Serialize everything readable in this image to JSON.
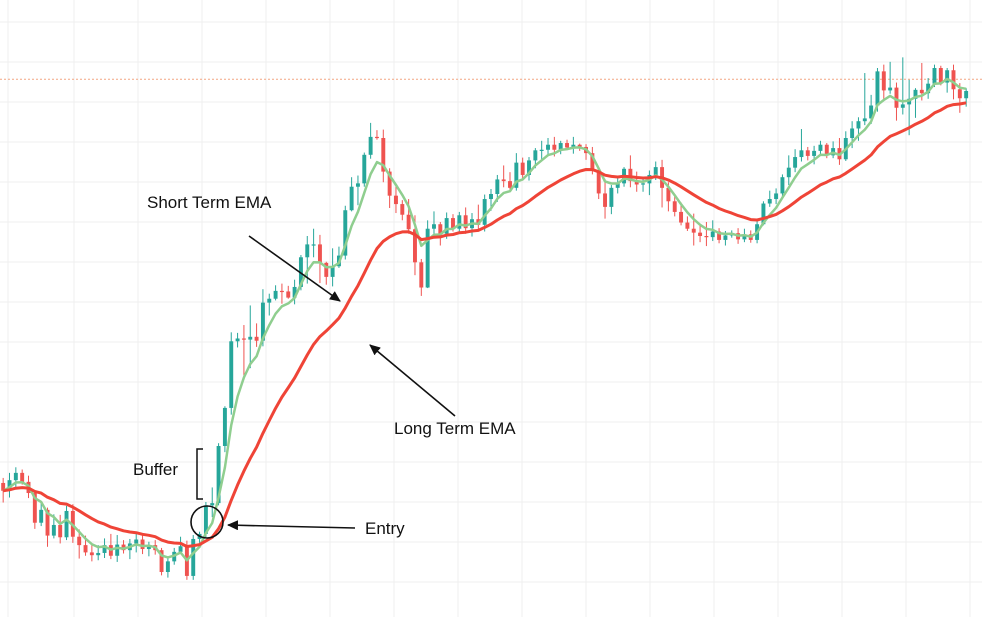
{
  "chart_data": {
    "type": "candlestick",
    "x_range": [
      0,
      155
    ],
    "y_range": [
      0,
      100
    ],
    "grid": true,
    "colors": {
      "background": "#ffffff",
      "grid": "#efefef",
      "reference_line": "#f4a582",
      "bullish": "#26a69a",
      "bearish": "#ef5350",
      "short_ema": "#8fce8f",
      "long_ema": "#ef4437",
      "annotation": "#111111"
    },
    "reference_level": 93,
    "candles": [
      {
        "o": 20.9,
        "h": 21.8,
        "l": 17.4,
        "c": 19.5
      },
      {
        "o": 19.5,
        "h": 22.7,
        "l": 18.3,
        "c": 21.4
      },
      {
        "o": 21.4,
        "h": 23.7,
        "l": 19.9,
        "c": 22.7
      },
      {
        "o": 22.7,
        "h": 23.3,
        "l": 20.6,
        "c": 21.1
      },
      {
        "o": 21.1,
        "h": 22.2,
        "l": 18.2,
        "c": 19.1
      },
      {
        "o": 19.1,
        "h": 19.6,
        "l": 12.7,
        "c": 13.8
      },
      {
        "o": 13.8,
        "h": 17.5,
        "l": 13.2,
        "c": 16.1
      },
      {
        "o": 16.1,
        "h": 16.5,
        "l": 9.5,
        "c": 11.5
      },
      {
        "o": 11.5,
        "h": 15.3,
        "l": 11.0,
        "c": 13.4
      },
      {
        "o": 13.4,
        "h": 15.2,
        "l": 10.1,
        "c": 11.2
      },
      {
        "o": 11.2,
        "h": 16.8,
        "l": 10.7,
        "c": 15.9
      },
      {
        "o": 15.9,
        "h": 17.1,
        "l": 10.2,
        "c": 11.3
      },
      {
        "o": 11.3,
        "h": 12.6,
        "l": 7.4,
        "c": 9.8
      },
      {
        "o": 9.8,
        "h": 11.5,
        "l": 7.9,
        "c": 8.5
      },
      {
        "o": 8.5,
        "h": 9.9,
        "l": 6.9,
        "c": 8.0
      },
      {
        "o": 8.0,
        "h": 9.8,
        "l": 7.1,
        "c": 8.4
      },
      {
        "o": 8.4,
        "h": 11.0,
        "l": 7.5,
        "c": 9.8
      },
      {
        "o": 9.8,
        "h": 11.8,
        "l": 7.3,
        "c": 7.9
      },
      {
        "o": 7.9,
        "h": 11.6,
        "l": 6.8,
        "c": 9.9
      },
      {
        "o": 9.9,
        "h": 10.7,
        "l": 8.3,
        "c": 8.9
      },
      {
        "o": 8.9,
        "h": 10.9,
        "l": 7.3,
        "c": 10.1
      },
      {
        "o": 10.1,
        "h": 11.9,
        "l": 8.5,
        "c": 10.8
      },
      {
        "o": 10.8,
        "h": 11.6,
        "l": 8.2,
        "c": 9.1
      },
      {
        "o": 9.1,
        "h": 10.4,
        "l": 7.8,
        "c": 9.8
      },
      {
        "o": 9.8,
        "h": 10.7,
        "l": 8.1,
        "c": 8.9
      },
      {
        "o": 8.9,
        "h": 9.3,
        "l": 4.4,
        "c": 5.0
      },
      {
        "o": 5.0,
        "h": 7.7,
        "l": 4.0,
        "c": 6.9
      },
      {
        "o": 6.9,
        "h": 9.3,
        "l": 6.3,
        "c": 8.6
      },
      {
        "o": 8.6,
        "h": 11.3,
        "l": 8.4,
        "c": 9.6
      },
      {
        "o": 9.6,
        "h": 10.6,
        "l": 3.6,
        "c": 4.3
      },
      {
        "o": 4.3,
        "h": 11.6,
        "l": 3.6,
        "c": 10.9
      },
      {
        "o": 10.9,
        "h": 12.2,
        "l": 10.2,
        "c": 11.8
      },
      {
        "o": 11.8,
        "h": 17.5,
        "l": 11.2,
        "c": 16.9
      },
      {
        "o": 16.9,
        "h": 20.1,
        "l": 14.8,
        "c": 17.3
      },
      {
        "o": 17.3,
        "h": 28.0,
        "l": 16.9,
        "c": 27.5
      },
      {
        "o": 27.5,
        "h": 34.6,
        "l": 26.4,
        "c": 34.3
      },
      {
        "o": 34.3,
        "h": 47.8,
        "l": 33.1,
        "c": 46.2
      },
      {
        "o": 46.2,
        "h": 47.7,
        "l": 45.1,
        "c": 46.7
      },
      {
        "o": 46.7,
        "h": 49.1,
        "l": 39.8,
        "c": 46.5
      },
      {
        "o": 46.5,
        "h": 52.6,
        "l": 41.4,
        "c": 47.0
      },
      {
        "o": 47.0,
        "h": 49.4,
        "l": 45.2,
        "c": 46.3
      },
      {
        "o": 46.3,
        "h": 55.5,
        "l": 45.3,
        "c": 53.1
      },
      {
        "o": 53.1,
        "h": 54.7,
        "l": 50.8,
        "c": 53.8
      },
      {
        "o": 53.8,
        "h": 56.2,
        "l": 53.5,
        "c": 55.2
      },
      {
        "o": 55.2,
        "h": 56.5,
        "l": 52.9,
        "c": 55.1
      },
      {
        "o": 55.1,
        "h": 56.1,
        "l": 53.8,
        "c": 54.0
      },
      {
        "o": 54.0,
        "h": 57.2,
        "l": 52.8,
        "c": 55.9
      },
      {
        "o": 55.9,
        "h": 61.6,
        "l": 55.3,
        "c": 61.2
      },
      {
        "o": 61.2,
        "h": 65.0,
        "l": 56.5,
        "c": 63.5
      },
      {
        "o": 63.5,
        "h": 66.3,
        "l": 61.2,
        "c": 63.5
      },
      {
        "o": 63.5,
        "h": 65.2,
        "l": 56.6,
        "c": 60.2
      },
      {
        "o": 60.2,
        "h": 60.4,
        "l": 56.3,
        "c": 57.7
      },
      {
        "o": 57.7,
        "h": 62.8,
        "l": 56.0,
        "c": 59.6
      },
      {
        "o": 59.6,
        "h": 63.1,
        "l": 59.3,
        "c": 61.5
      },
      {
        "o": 61.5,
        "h": 70.4,
        "l": 60.8,
        "c": 69.6
      },
      {
        "o": 69.6,
        "h": 75.5,
        "l": 69.4,
        "c": 73.8
      },
      {
        "o": 73.8,
        "h": 75.8,
        "l": 70.5,
        "c": 74.4
      },
      {
        "o": 74.4,
        "h": 79.9,
        "l": 73.8,
        "c": 79.5
      },
      {
        "o": 79.5,
        "h": 85.2,
        "l": 78.8,
        "c": 82.7
      },
      {
        "o": 82.7,
        "h": 83.9,
        "l": 82.2,
        "c": 82.5
      },
      {
        "o": 82.5,
        "h": 84.0,
        "l": 74.6,
        "c": 76.5
      },
      {
        "o": 76.5,
        "h": 77.1,
        "l": 70.0,
        "c": 72.2
      },
      {
        "o": 72.2,
        "h": 73.9,
        "l": 69.1,
        "c": 70.7
      },
      {
        "o": 70.7,
        "h": 71.4,
        "l": 67.8,
        "c": 68.8
      },
      {
        "o": 68.8,
        "h": 71.6,
        "l": 65.4,
        "c": 66.2
      },
      {
        "o": 66.2,
        "h": 68.7,
        "l": 58.0,
        "c": 60.3
      },
      {
        "o": 60.3,
        "h": 60.9,
        "l": 54.3,
        "c": 55.8
      },
      {
        "o": 55.8,
        "h": 67.8,
        "l": 55.7,
        "c": 66.3
      },
      {
        "o": 66.3,
        "h": 69.4,
        "l": 65.1,
        "c": 67.1
      },
      {
        "o": 67.1,
        "h": 67.5,
        "l": 63.3,
        "c": 65.4
      },
      {
        "o": 65.4,
        "h": 69.2,
        "l": 64.5,
        "c": 68.2
      },
      {
        "o": 68.2,
        "h": 68.9,
        "l": 65.8,
        "c": 66.3
      },
      {
        "o": 66.3,
        "h": 69.3,
        "l": 65.4,
        "c": 68.7
      },
      {
        "o": 68.7,
        "h": 70.1,
        "l": 65.4,
        "c": 66.4
      },
      {
        "o": 66.4,
        "h": 69.1,
        "l": 64.9,
        "c": 68.0
      },
      {
        "o": 68.0,
        "h": 70.6,
        "l": 66.2,
        "c": 67.0
      },
      {
        "o": 67.0,
        "h": 72.4,
        "l": 65.8,
        "c": 71.6
      },
      {
        "o": 71.6,
        "h": 73.4,
        "l": 69.5,
        "c": 72.5
      },
      {
        "o": 72.5,
        "h": 75.9,
        "l": 71.1,
        "c": 75.1
      },
      {
        "o": 75.1,
        "h": 77.6,
        "l": 73.7,
        "c": 74.8
      },
      {
        "o": 74.8,
        "h": 76.4,
        "l": 73.2,
        "c": 73.6
      },
      {
        "o": 73.6,
        "h": 79.8,
        "l": 73.1,
        "c": 78.1
      },
      {
        "o": 78.1,
        "h": 79.0,
        "l": 74.9,
        "c": 75.9
      },
      {
        "o": 75.9,
        "h": 79.1,
        "l": 74.9,
        "c": 78.5
      },
      {
        "o": 78.5,
        "h": 80.7,
        "l": 77.1,
        "c": 80.3
      },
      {
        "o": 80.3,
        "h": 82.0,
        "l": 78.4,
        "c": 80.4
      },
      {
        "o": 80.4,
        "h": 82.5,
        "l": 79.6,
        "c": 81.3
      },
      {
        "o": 81.3,
        "h": 82.7,
        "l": 79.2,
        "c": 80.4
      },
      {
        "o": 80.4,
        "h": 82.0,
        "l": 79.6,
        "c": 81.6
      },
      {
        "o": 81.6,
        "h": 82.2,
        "l": 80.4,
        "c": 80.8
      },
      {
        "o": 80.8,
        "h": 82.7,
        "l": 79.7,
        "c": 81.3
      },
      {
        "o": 81.3,
        "h": 81.5,
        "l": 80.2,
        "c": 80.9
      },
      {
        "o": 80.9,
        "h": 81.4,
        "l": 78.6,
        "c": 79.8
      },
      {
        "o": 79.8,
        "h": 80.9,
        "l": 76.0,
        "c": 76.8
      },
      {
        "o": 76.8,
        "h": 77.3,
        "l": 71.6,
        "c": 72.6
      },
      {
        "o": 72.6,
        "h": 75.2,
        "l": 68.1,
        "c": 70.2
      },
      {
        "o": 70.2,
        "h": 74.1,
        "l": 68.9,
        "c": 73.6
      },
      {
        "o": 73.6,
        "h": 75.5,
        "l": 72.6,
        "c": 74.4
      },
      {
        "o": 74.4,
        "h": 77.3,
        "l": 73.8,
        "c": 77.0
      },
      {
        "o": 77.0,
        "h": 79.4,
        "l": 73.7,
        "c": 74.8
      },
      {
        "o": 74.8,
        "h": 76.5,
        "l": 72.9,
        "c": 74.2
      },
      {
        "o": 74.2,
        "h": 75.5,
        "l": 72.9,
        "c": 74.4
      },
      {
        "o": 74.4,
        "h": 76.7,
        "l": 72.3,
        "c": 75.9
      },
      {
        "o": 75.9,
        "h": 78.3,
        "l": 75.0,
        "c": 77.3
      },
      {
        "o": 77.3,
        "h": 78.6,
        "l": 70.1,
        "c": 73.6
      },
      {
        "o": 73.6,
        "h": 74.6,
        "l": 69.4,
        "c": 71.2
      },
      {
        "o": 71.2,
        "h": 72.1,
        "l": 68.5,
        "c": 69.3
      },
      {
        "o": 69.3,
        "h": 71.0,
        "l": 66.9,
        "c": 67.4
      },
      {
        "o": 67.4,
        "h": 68.5,
        "l": 65.9,
        "c": 66.3
      },
      {
        "o": 66.3,
        "h": 69.0,
        "l": 63.3,
        "c": 65.6
      },
      {
        "o": 65.6,
        "h": 67.1,
        "l": 63.9,
        "c": 65.0
      },
      {
        "o": 65.0,
        "h": 67.5,
        "l": 63.2,
        "c": 64.8
      },
      {
        "o": 64.8,
        "h": 67.8,
        "l": 64.1,
        "c": 65.8
      },
      {
        "o": 65.8,
        "h": 66.4,
        "l": 63.7,
        "c": 64.3
      },
      {
        "o": 64.3,
        "h": 65.9,
        "l": 63.3,
        "c": 65.1
      },
      {
        "o": 65.1,
        "h": 66.0,
        "l": 64.7,
        "c": 65.5
      },
      {
        "o": 65.5,
        "h": 66.4,
        "l": 63.6,
        "c": 64.4
      },
      {
        "o": 64.4,
        "h": 66.3,
        "l": 63.9,
        "c": 65.3
      },
      {
        "o": 65.3,
        "h": 66.0,
        "l": 63.8,
        "c": 64.3
      },
      {
        "o": 64.3,
        "h": 67.6,
        "l": 63.7,
        "c": 67.1
      },
      {
        "o": 67.1,
        "h": 71.2,
        "l": 66.9,
        "c": 70.8
      },
      {
        "o": 70.8,
        "h": 73.1,
        "l": 70.2,
        "c": 71.6
      },
      {
        "o": 71.6,
        "h": 73.5,
        "l": 70.7,
        "c": 72.6
      },
      {
        "o": 72.6,
        "h": 76.0,
        "l": 71.9,
        "c": 75.5
      },
      {
        "o": 75.5,
        "h": 79.4,
        "l": 74.1,
        "c": 77.2
      },
      {
        "o": 77.2,
        "h": 80.5,
        "l": 76.4,
        "c": 79.1
      },
      {
        "o": 79.1,
        "h": 84.1,
        "l": 78.3,
        "c": 80.3
      },
      {
        "o": 80.3,
        "h": 80.9,
        "l": 78.5,
        "c": 79.3
      },
      {
        "o": 79.3,
        "h": 81.1,
        "l": 77.8,
        "c": 80.2
      },
      {
        "o": 80.2,
        "h": 82.0,
        "l": 79.5,
        "c": 81.3
      },
      {
        "o": 81.3,
        "h": 81.6,
        "l": 78.9,
        "c": 79.4
      },
      {
        "o": 79.4,
        "h": 81.9,
        "l": 78.9,
        "c": 80.7
      },
      {
        "o": 80.7,
        "h": 82.5,
        "l": 77.7,
        "c": 78.7
      },
      {
        "o": 78.7,
        "h": 83.7,
        "l": 78.4,
        "c": 82.5
      },
      {
        "o": 82.5,
        "h": 85.5,
        "l": 80.7,
        "c": 84.2
      },
      {
        "o": 84.2,
        "h": 86.2,
        "l": 82.0,
        "c": 85.5
      },
      {
        "o": 85.5,
        "h": 94.1,
        "l": 84.8,
        "c": 86.0
      },
      {
        "o": 86.0,
        "h": 90.2,
        "l": 85.0,
        "c": 88.3
      },
      {
        "o": 88.3,
        "h": 95.0,
        "l": 87.2,
        "c": 94.4
      },
      {
        "o": 94.4,
        "h": 95.6,
        "l": 89.2,
        "c": 91.0
      },
      {
        "o": 91.0,
        "h": 96.1,
        "l": 90.4,
        "c": 91.5
      },
      {
        "o": 91.5,
        "h": 92.4,
        "l": 85.6,
        "c": 87.9
      },
      {
        "o": 87.9,
        "h": 96.9,
        "l": 86.7,
        "c": 88.5
      },
      {
        "o": 88.5,
        "h": 92.9,
        "l": 83.0,
        "c": 89.5
      },
      {
        "o": 89.5,
        "h": 91.4,
        "l": 86.1,
        "c": 91.1
      },
      {
        "o": 91.1,
        "h": 95.9,
        "l": 89.2,
        "c": 90.5
      },
      {
        "o": 90.5,
        "h": 93.2,
        "l": 89.5,
        "c": 92.2
      },
      {
        "o": 92.2,
        "h": 95.6,
        "l": 91.6,
        "c": 95.0
      },
      {
        "o": 95.0,
        "h": 95.4,
        "l": 91.9,
        "c": 92.4
      },
      {
        "o": 92.4,
        "h": 95.0,
        "l": 90.6,
        "c": 94.6
      },
      {
        "o": 94.6,
        "h": 95.6,
        "l": 89.4,
        "c": 91.2
      },
      {
        "o": 91.2,
        "h": 92.3,
        "l": 87.0,
        "c": 89.6
      },
      {
        "o": 89.6,
        "h": 91.4,
        "l": 88.1,
        "c": 90.9
      }
    ],
    "series": [
      {
        "name": "Short Term EMA",
        "period": 5
      },
      {
        "name": "Long Term EMA",
        "period": 20
      }
    ],
    "annotations": [
      {
        "text": "Short Term EMA",
        "target": "short-ema"
      },
      {
        "text": "Long Term EMA",
        "target": "long-ema"
      },
      {
        "text": "Buffer",
        "target": "bracket"
      },
      {
        "text": "Entry",
        "target": "entry-circle"
      }
    ]
  }
}
